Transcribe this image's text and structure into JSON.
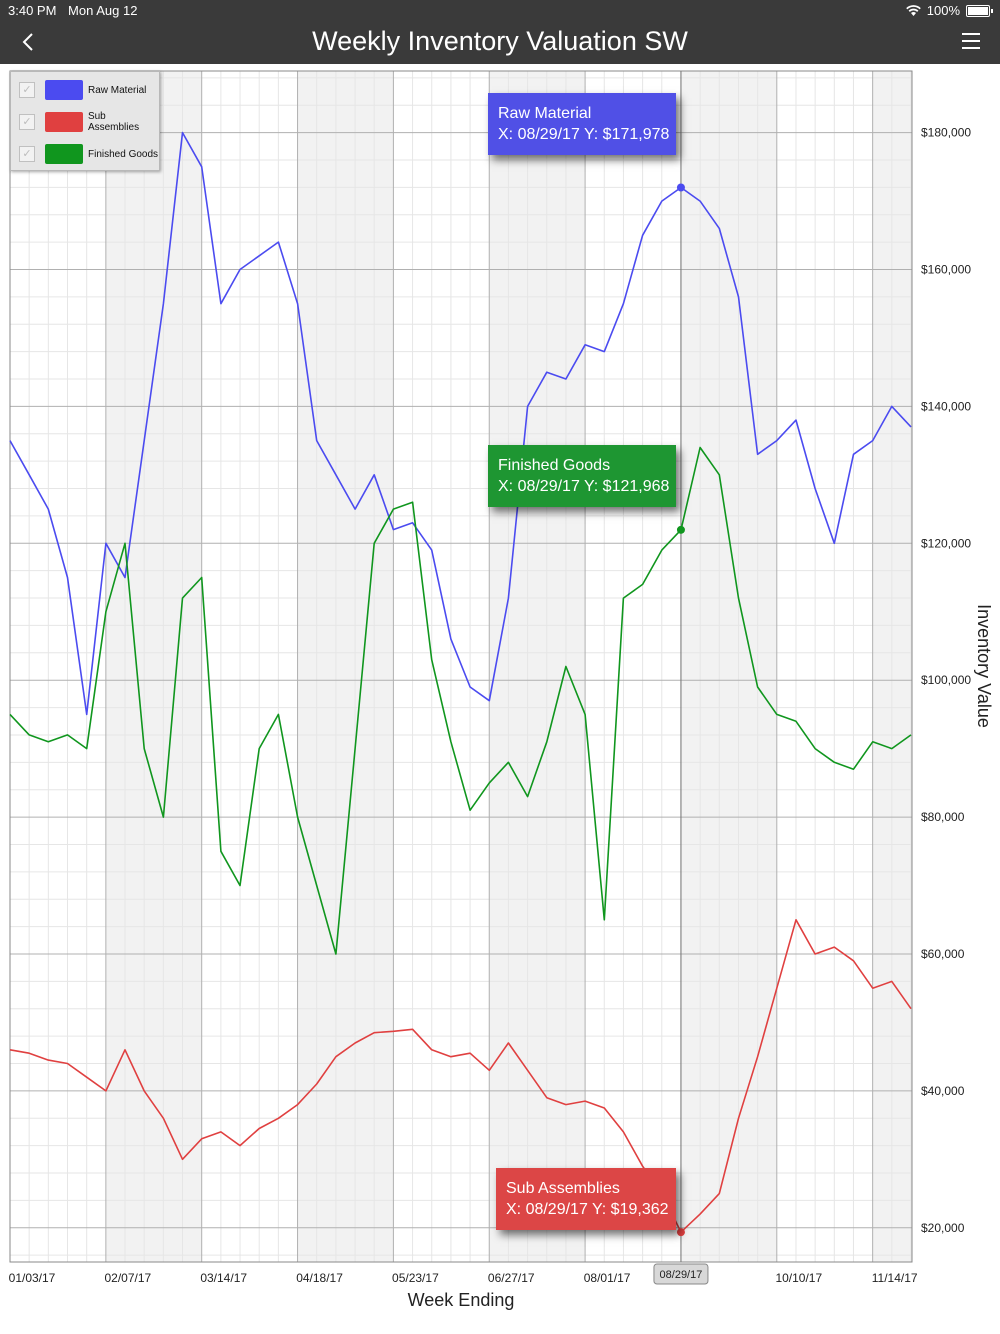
{
  "status_bar": {
    "time": "3:40 PM",
    "date": "Mon Aug 12",
    "battery": "100%"
  },
  "nav": {
    "title": "Weekly Inventory Valuation SW"
  },
  "legend": {
    "items": [
      {
        "label": "Raw Material",
        "color": "#4b4bf0"
      },
      {
        "label": "Sub Assemblies",
        "color": "#e04040"
      },
      {
        "label": "Finished Goods",
        "color": "#10961e"
      }
    ]
  },
  "tooltips": [
    {
      "series": "Raw Material",
      "line1": "Raw Material",
      "line2": "X: 08/29/17 Y: $171,978",
      "color": "#5050e6"
    },
    {
      "series": "Finished Goods",
      "line1": "Finished Goods",
      "line2": "X: 08/29/17 Y: $121,968",
      "color": "#1e9632"
    },
    {
      "series": "Sub Assemblies",
      "line1": "Sub Assemblies",
      "line2": "X: 08/29/17 Y: $19,362",
      "color": "#dc4646"
    }
  ],
  "crosshair_label": "08/29/17",
  "chart_data": {
    "type": "line",
    "xlabel": "Week Ending",
    "ylabel": "Inventory Value",
    "ylim": [
      15000,
      189000
    ],
    "x_tick_labels": [
      "01/03/17",
      "02/07/17",
      "03/14/17",
      "04/18/17",
      "05/23/17",
      "06/27/17",
      "08/01/17",
      "10/10/17",
      "11/14/17"
    ],
    "y_tick_labels": [
      "$20,000",
      "$40,000",
      "$60,000",
      "$80,000",
      "$100,000",
      "$120,000",
      "$140,000",
      "$160,000",
      "$180,000"
    ],
    "y_ticks": [
      20000,
      40000,
      60000,
      80000,
      100000,
      120000,
      140000,
      160000,
      180000
    ],
    "grid": true,
    "legend_position": "top-left",
    "selected_index": 35,
    "series": [
      {
        "name": "Raw Material",
        "color": "#4b4bf0",
        "values": [
          135000,
          130000,
          125000,
          115000,
          95000,
          120000,
          115000,
          135000,
          155000,
          180000,
          175000,
          155000,
          160000,
          162000,
          164000,
          155000,
          135000,
          130000,
          125000,
          130000,
          122000,
          123000,
          119000,
          106000,
          99000,
          97000,
          112000,
          140000,
          145000,
          144000,
          149000,
          148000,
          155000,
          165000,
          170000,
          171978,
          170000,
          166000,
          156000,
          133000,
          135000,
          138000,
          128000,
          120000,
          133000,
          135000,
          140000,
          137000
        ]
      },
      {
        "name": "Sub Assemblies",
        "color": "#e04040",
        "values": [
          46000,
          45500,
          44500,
          44000,
          42000,
          40000,
          46000,
          40000,
          36000,
          30000,
          33000,
          34000,
          32000,
          34500,
          36000,
          38000,
          41000,
          45000,
          47000,
          48500,
          48700,
          49000,
          46000,
          45000,
          45500,
          43000,
          47000,
          43000,
          39000,
          38000,
          38500,
          37500,
          34000,
          29000,
          25000,
          19362,
          22000,
          25000,
          36000,
          45000,
          55000,
          65000,
          60000,
          61000,
          59000,
          55000,
          56000,
          52000
        ]
      },
      {
        "name": "Finished Goods",
        "color": "#10961e",
        "values": [
          95000,
          92000,
          91000,
          92000,
          90000,
          110000,
          120000,
          90000,
          80000,
          112000,
          115000,
          75000,
          70000,
          90000,
          95000,
          80000,
          70000,
          60000,
          90000,
          120000,
          125000,
          126000,
          103000,
          91000,
          81000,
          85000,
          88000,
          83000,
          91000,
          102000,
          95000,
          65000,
          112000,
          114000,
          119000,
          121968,
          134000,
          130000,
          112000,
          99000,
          95000,
          94000,
          90000,
          88000,
          87000,
          91000,
          90000,
          92000
        ]
      }
    ]
  }
}
